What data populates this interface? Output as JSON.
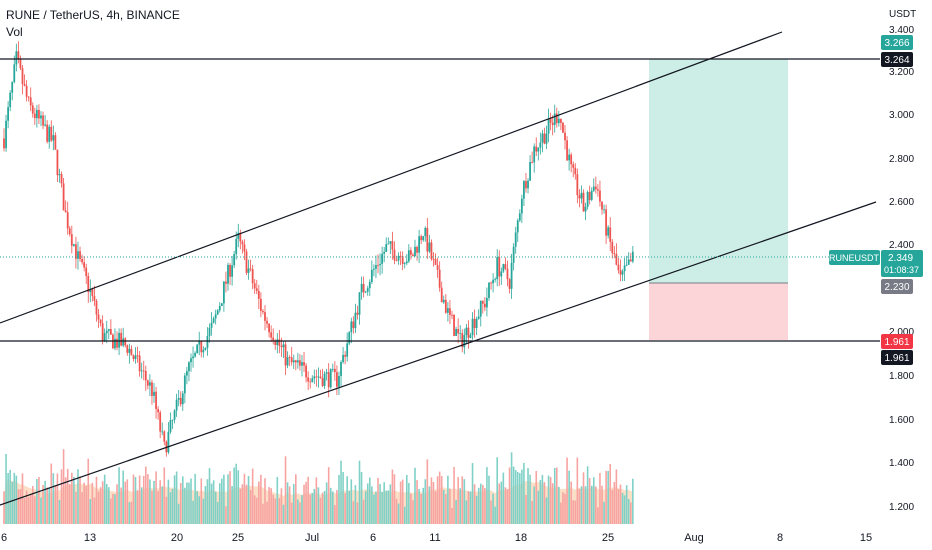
{
  "header": {
    "symbol_title": "RUNE / TetherUS, 4h, BINANCE",
    "volume_label": "Vol"
  },
  "colors": {
    "up": "#26a69a",
    "down": "#ef5350",
    "volume_up": "#7fd1c7",
    "volume_down": "#f7a3a1",
    "volume_ma_fill": "#f8c9a0",
    "profit_zone": "#cdeee6",
    "loss_zone": "#fbd5d8",
    "line": "#131722",
    "last_price_badge": "#26a69a",
    "countdown_badge": "#089981",
    "stop_badge": "#f23645",
    "black_badge": "#131722",
    "grey_badge": "#787b86",
    "target_badge": "#26a69a"
  },
  "price_axis": {
    "currency": "USDT",
    "ticks": [
      "3.400",
      "3.200",
      "3.000",
      "2.800",
      "2.600",
      "2.400",
      "2.000",
      "1.800",
      "1.600",
      "1.400",
      "1.200"
    ]
  },
  "time_axis": {
    "ticks": [
      "6",
      "13",
      "20",
      "25",
      "Jul",
      "6",
      "11",
      "18",
      "25",
      "Aug",
      "8",
      "15"
    ]
  },
  "badges": {
    "target_price": "3.266",
    "horizontal_top": "3.264",
    "symbol_tag": "RUNEUSDT",
    "last_price": "2.349",
    "countdown": "01:08:37",
    "entry_price": "2.230",
    "stop_price": "1.961",
    "horizontal_bottom": "1.961"
  },
  "chart_data": {
    "type": "candlestick",
    "symbol": "RUNE / TetherUS",
    "interval": "4h",
    "exchange": "BINANCE",
    "ylim": [
      1.12,
      3.45
    ],
    "y_ticks": [
      1.2,
      1.4,
      1.6,
      1.8,
      2.0,
      2.4,
      2.6,
      2.8,
      3.0,
      3.2,
      3.4
    ],
    "x_ticks": [
      "6",
      "13",
      "20",
      "25",
      "Jul",
      "6",
      "11",
      "18",
      "25",
      "Aug",
      "8",
      "15"
    ],
    "last_price": 2.349,
    "horizontal_levels": [
      3.264,
      1.961
    ],
    "position": {
      "target": 3.266,
      "entry": 2.23,
      "stop": 1.961
    },
    "price_path_keypoints": [
      {
        "x": "Jun 6",
        "price": 2.9
      },
      {
        "x": "Jun 7",
        "price": 3.26
      },
      {
        "x": "Jun 8",
        "price": 3.05
      },
      {
        "x": "Jun 10",
        "price": 2.88
      },
      {
        "x": "Jun 11",
        "price": 2.55
      },
      {
        "x": "Jun 12",
        "price": 2.35
      },
      {
        "x": "Jun 13",
        "price": 2.2
      },
      {
        "x": "Jun 14",
        "price": 2.0
      },
      {
        "x": "Jun 16",
        "price": 1.95
      },
      {
        "x": "Jun 18",
        "price": 1.75
      },
      {
        "x": "Jun 19",
        "price": 1.48
      },
      {
        "x": "Jun 21",
        "price": 1.85
      },
      {
        "x": "Jun 23",
        "price": 2.05
      },
      {
        "x": "Jun 25",
        "price": 2.44
      },
      {
        "x": "Jun 27",
        "price": 2.1
      },
      {
        "x": "Jun 29",
        "price": 1.88
      },
      {
        "x": "Jul 1",
        "price": 1.82
      },
      {
        "x": "Jul 3",
        "price": 1.8
      },
      {
        "x": "Jul 5",
        "price": 2.2
      },
      {
        "x": "Jul 7",
        "price": 2.4
      },
      {
        "x": "Jul 9",
        "price": 2.35
      },
      {
        "x": "Jul 10",
        "price": 2.48
      },
      {
        "x": "Jul 12",
        "price": 2.1
      },
      {
        "x": "Jul 13",
        "price": 1.97
      },
      {
        "x": "Jul 15",
        "price": 2.15
      },
      {
        "x": "Jul 16",
        "price": 2.32
      },
      {
        "x": "Jul 17",
        "price": 2.25
      },
      {
        "x": "Jul 18",
        "price": 2.65
      },
      {
        "x": "Jul 19",
        "price": 2.85
      },
      {
        "x": "Jul 21",
        "price": 3.02
      },
      {
        "x": "Jul 22",
        "price": 2.75
      },
      {
        "x": "Jul 23",
        "price": 2.58
      },
      {
        "x": "Jul 24",
        "price": 2.7
      },
      {
        "x": "Jul 25",
        "price": 2.45
      },
      {
        "x": "Jul 26",
        "price": 2.25
      },
      {
        "x": "Jul 27",
        "price": 2.349
      }
    ],
    "trendlines": [
      {
        "name": "channel-upper",
        "from": {
          "x": "Jun 6",
          "price": 2.04
        },
        "to": {
          "x": "Aug 8",
          "price": 3.38
        }
      },
      {
        "name": "channel-lower",
        "from": {
          "x": "Jun 6",
          "price": 1.22
        },
        "to": {
          "x": "Aug 14",
          "price": 2.6
        }
      }
    ]
  }
}
